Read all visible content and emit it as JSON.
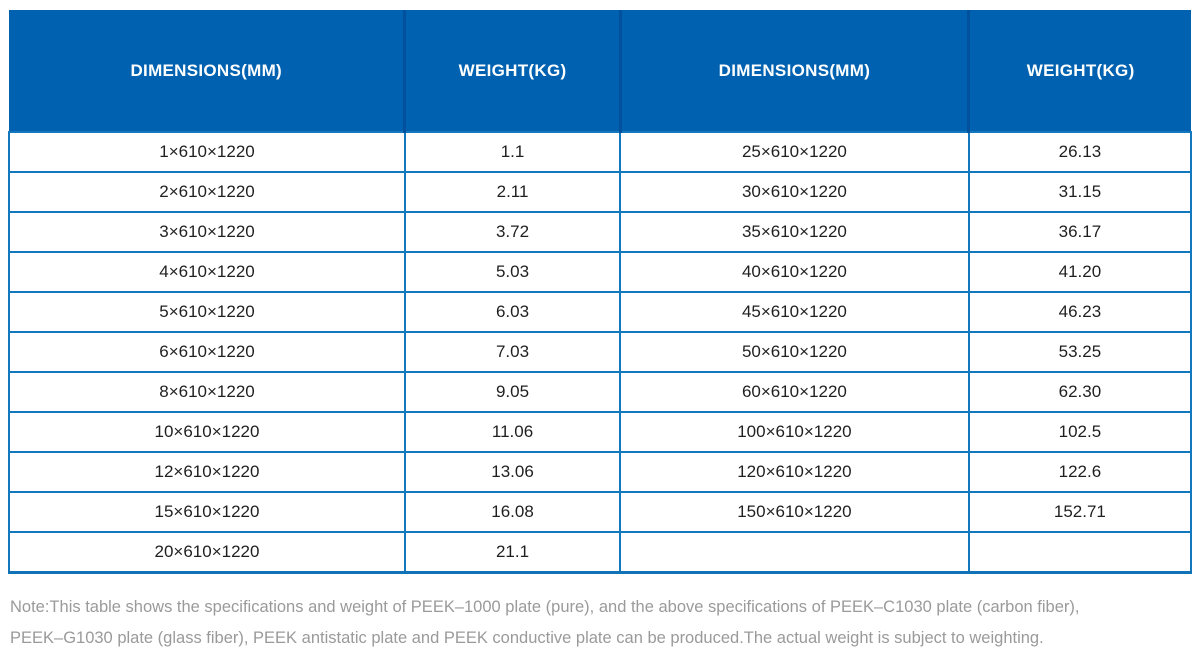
{
  "table": {
    "headers": [
      "DIMENSIONS(MM)",
      "WEIGHT(KG)",
      "DIMENSIONS(MM)",
      "WEIGHT(KG)"
    ],
    "rows": [
      [
        "1×610×1220",
        "1.1",
        "25×610×1220",
        "26.13"
      ],
      [
        "2×610×1220",
        "2.11",
        "30×610×1220",
        "31.15"
      ],
      [
        "3×610×1220",
        "3.72",
        "35×610×1220",
        "36.17"
      ],
      [
        "4×610×1220",
        "5.03",
        "40×610×1220",
        "41.20"
      ],
      [
        "5×610×1220",
        "6.03",
        "45×610×1220",
        "46.23"
      ],
      [
        "6×610×1220",
        "7.03",
        "50×610×1220",
        "53.25"
      ],
      [
        "8×610×1220",
        "9.05",
        "60×610×1220",
        "62.30"
      ],
      [
        "10×610×1220",
        "11.06",
        "100×610×1220",
        "102.5"
      ],
      [
        "12×610×1220",
        "13.06",
        "120×610×1220",
        "122.6"
      ],
      [
        "15×610×1220",
        "16.08",
        "150×610×1220",
        "152.71"
      ],
      [
        "20×610×1220",
        "21.1",
        "",
        ""
      ]
    ]
  },
  "note": {
    "line1": "Note:This table shows the specifications and weight of PEEK–1000 plate (pure), and the above specifications of PEEK–C1030 plate (carbon fiber),",
    "line2": "PEEK–G1030 plate (glass fiber), PEEK antistatic plate and PEEK conductive plate can be produced.The actual weight is subject to weighting."
  },
  "colors": {
    "header_bg": "#0061b0",
    "header_divider": "#02519c",
    "body_border": "#1478be",
    "cell_text": "#1f1f1f",
    "note_text": "#9a9a9a"
  }
}
